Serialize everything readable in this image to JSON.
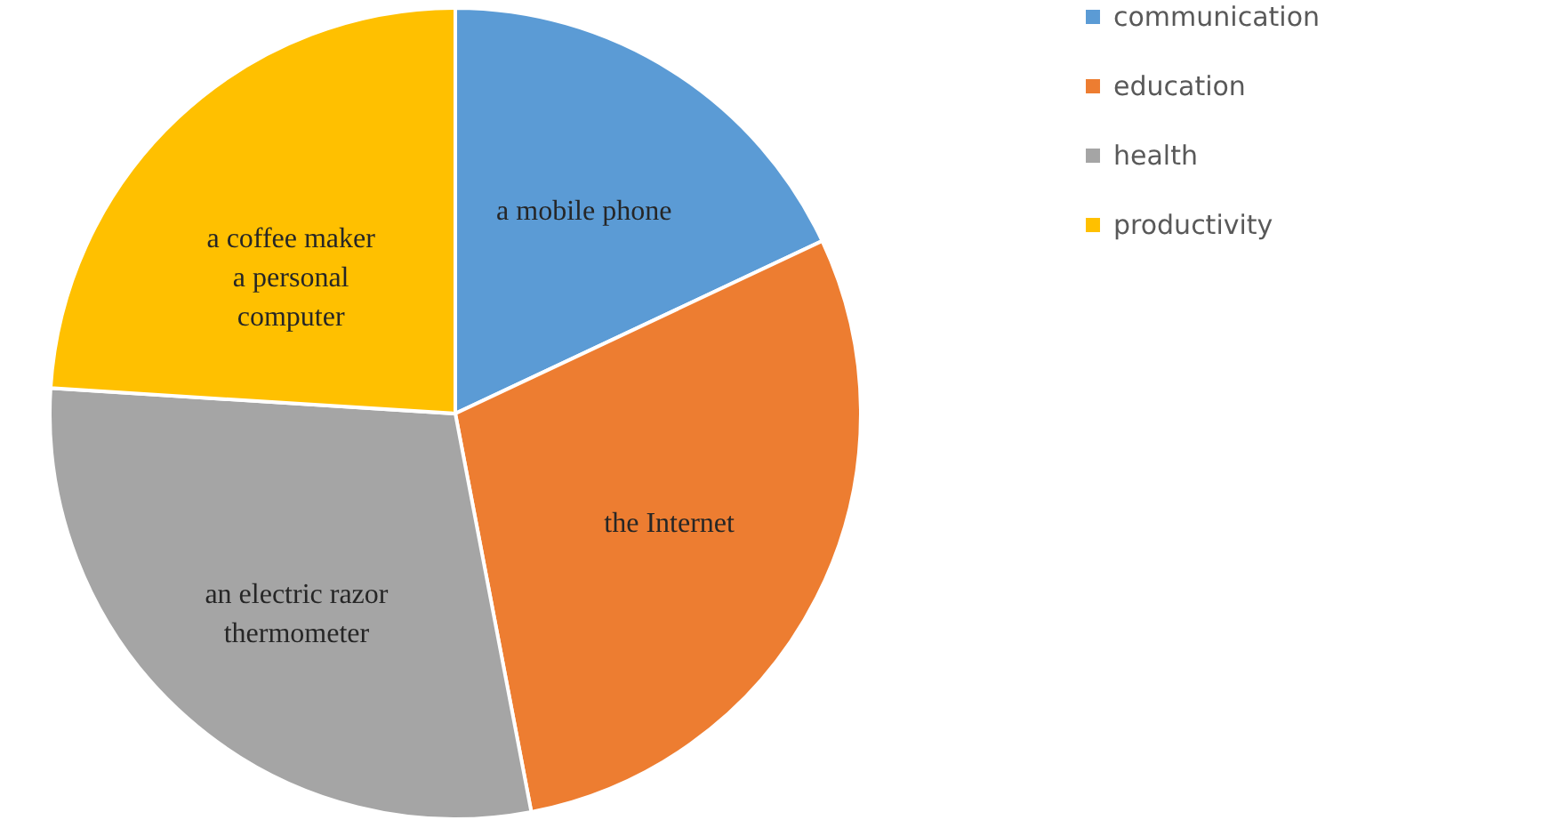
{
  "chart_data": {
    "type": "pie",
    "categories": [
      "communication",
      "education",
      "health",
      "productivity"
    ],
    "values": [
      18,
      29,
      29,
      24
    ],
    "colors": [
      "#5b9bd5",
      "#ed7d31",
      "#a5a5a5",
      "#ffc000"
    ],
    "annotations": [
      "a mobile phone",
      "the Internet",
      "an electric razor\nthermometer",
      "a coffee maker\na personal\ncomputer"
    ],
    "legend": "right"
  }
}
